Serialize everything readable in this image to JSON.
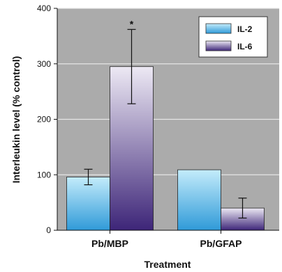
{
  "chart_data": {
    "type": "bar",
    "xlabel": "Treatment",
    "ylabel": "Interleukin level (% control)",
    "ylim": [
      0,
      400
    ],
    "yticks": [
      0,
      100,
      200,
      300,
      400
    ],
    "grid": true,
    "legend_position": "top-right",
    "categories": [
      "Pb/MBP",
      "Pb/GFAP"
    ],
    "series": [
      {
        "name": "IL-2",
        "values": [
          96,
          109
        ],
        "error": [
          14,
          null
        ],
        "color_top": "#c4ecfb",
        "color_bottom": "#2f9ad8"
      },
      {
        "name": "IL-6",
        "values": [
          295,
          40
        ],
        "error": [
          67,
          18
        ],
        "color_top": "#ede9f4",
        "color_bottom": "#3d2578"
      }
    ],
    "annotations": [
      {
        "text": "*",
        "category": "Pb/MBP",
        "series": "IL-6"
      }
    ],
    "plot_background": "#ababab",
    "grid_color": "#e6e6e6"
  }
}
